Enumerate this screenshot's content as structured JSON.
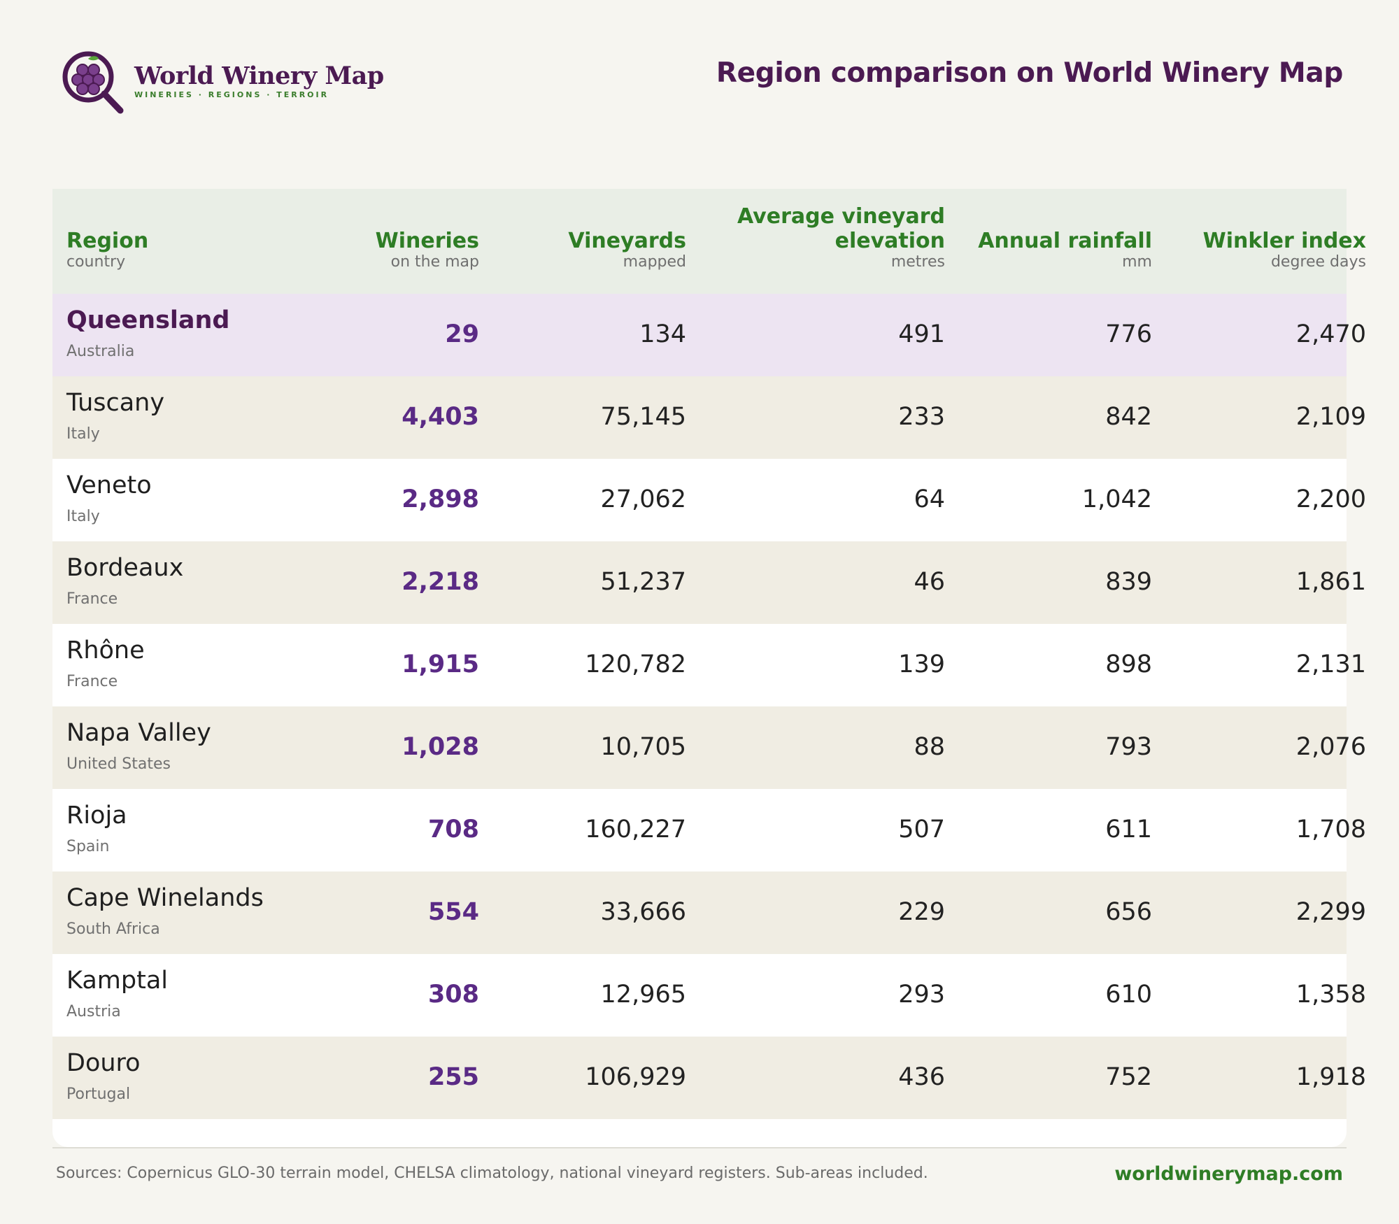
{
  "brand": {
    "name": "World Winery Map",
    "tagline": "WINERIES · REGIONS · TERROIR"
  },
  "page_title": "Region comparison on World Winery Map",
  "columns": [
    {
      "label": "Region",
      "sub": "country"
    },
    {
      "label": "Wineries",
      "sub": "on the map"
    },
    {
      "label": "Vineyards",
      "sub": "mapped"
    },
    {
      "label": "Average vineyard elevation",
      "sub": "metres"
    },
    {
      "label": "Annual rainfall",
      "sub": "mm"
    },
    {
      "label": "Winkler index",
      "sub": "degree days"
    }
  ],
  "rows": [
    {
      "region": "Queensland",
      "country": "Australia",
      "wineries": "29",
      "vineyards": "134",
      "elevation": "491",
      "rainfall": "776",
      "winkler": "2,470",
      "highlight": true
    },
    {
      "region": "Tuscany",
      "country": "Italy",
      "wineries": "4,403",
      "vineyards": "75,145",
      "elevation": "233",
      "rainfall": "842",
      "winkler": "2,109"
    },
    {
      "region": "Veneto",
      "country": "Italy",
      "wineries": "2,898",
      "vineyards": "27,062",
      "elevation": "64",
      "rainfall": "1,042",
      "winkler": "2,200"
    },
    {
      "region": "Bordeaux",
      "country": "France",
      "wineries": "2,218",
      "vineyards": "51,237",
      "elevation": "46",
      "rainfall": "839",
      "winkler": "1,861"
    },
    {
      "region": "Rhône",
      "country": "France",
      "wineries": "1,915",
      "vineyards": "120,782",
      "elevation": "139",
      "rainfall": "898",
      "winkler": "2,131"
    },
    {
      "region": "Napa Valley",
      "country": "United States",
      "wineries": "1,028",
      "vineyards": "10,705",
      "elevation": "88",
      "rainfall": "793",
      "winkler": "2,076"
    },
    {
      "region": "Rioja",
      "country": "Spain",
      "wineries": "708",
      "vineyards": "160,227",
      "elevation": "507",
      "rainfall": "611",
      "winkler": "1,708"
    },
    {
      "region": "Cape Winelands",
      "country": "South Africa",
      "wineries": "554",
      "vineyards": "33,666",
      "elevation": "229",
      "rainfall": "656",
      "winkler": "2,299"
    },
    {
      "region": "Kamptal",
      "country": "Austria",
      "wineries": "308",
      "vineyards": "12,965",
      "elevation": "293",
      "rainfall": "610",
      "winkler": "1,358"
    },
    {
      "region": "Douro",
      "country": "Portugal",
      "wineries": "255",
      "vineyards": "106,929",
      "elevation": "436",
      "rainfall": "752",
      "winkler": "1,918"
    }
  ],
  "footer": {
    "sources": "Sources: Copernicus GLO-30 terrain model, CHELSA climatology, national vineyard registers. Sub-areas included.",
    "site": "worldwinerymap.com"
  },
  "colors": {
    "brand_purple": "#4b1a52",
    "accent_green": "#2e7d25",
    "wineries_purple": "#5a2a85",
    "highlight_row": "#ede4f2"
  },
  "icons": {
    "logo": "grape-magnifier-icon"
  }
}
